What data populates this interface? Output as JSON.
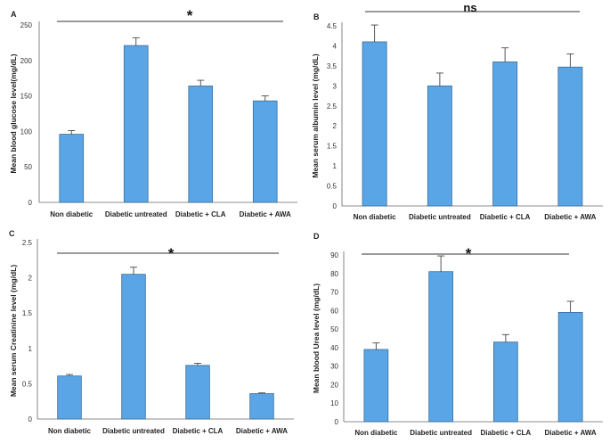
{
  "colors": {
    "bar_fill": "#5aa5e6",
    "bar_stroke": "#3c6e9c",
    "axis": "#666666",
    "error_bar": "#444444"
  },
  "chart_data": [
    {
      "panel": "A",
      "type": "bar",
      "title": "",
      "xlabel": "",
      "ylabel": "Mean blood glucose level(mg/dL)",
      "categories": [
        "Non diabetic",
        "Diabetic untreated",
        "Diabetic + CLA",
        "Diabetic + AWA"
      ],
      "values": [
        96,
        221,
        164,
        143
      ],
      "errors": [
        5,
        11,
        8,
        7
      ],
      "ylim": [
        0,
        250
      ],
      "yticks": [
        0,
        50,
        100,
        150,
        200,
        250
      ],
      "significance": "*",
      "grid": false
    },
    {
      "panel": "B",
      "type": "bar",
      "title": "",
      "xlabel": "",
      "ylabel": "Mean serum albumin level (mg/dL)",
      "categories": [
        "Non diabetic",
        "Diabetic untreated",
        "Diabetic + CLA",
        "Diabetic + AWA"
      ],
      "values": [
        4.1,
        3.0,
        3.6,
        3.47
      ],
      "errors": [
        0.42,
        0.32,
        0.35,
        0.33
      ],
      "ylim": [
        0,
        4.5
      ],
      "yticks": [
        0,
        0.5,
        1,
        1.5,
        2,
        2.5,
        3,
        3.5,
        4,
        4.5
      ],
      "significance": "ns",
      "grid": false
    },
    {
      "panel": "C",
      "type": "bar",
      "title": "",
      "xlabel": "",
      "ylabel": "Mean serum Creatinine level (mg/dL)",
      "categories": [
        "Non diabetic",
        "Diabetic untreated",
        "Diabetic + CLA",
        "Diabetic + AWA"
      ],
      "values": [
        0.61,
        2.05,
        0.76,
        0.36
      ],
      "errors": [
        0.02,
        0.1,
        0.03,
        0.01
      ],
      "ylim": [
        0,
        2.5
      ],
      "yticks": [
        0,
        0.5,
        1,
        1.5,
        2,
        2.5
      ],
      "significance": "*",
      "grid": false
    },
    {
      "panel": "D",
      "type": "bar",
      "title": "",
      "xlabel": "",
      "ylabel": "Mean blood Urea level (mg/dL)",
      "categories": [
        "Non diabetic",
        "Diabetic untreated",
        "Diabetic + CLA",
        "Diabetic + AWA"
      ],
      "values": [
        39,
        81,
        43,
        59
      ],
      "errors": [
        3.5,
        8.5,
        4,
        6
      ],
      "ylim": [
        0,
        90
      ],
      "yticks": [
        0,
        10,
        20,
        30,
        40,
        50,
        60,
        70,
        80,
        90
      ],
      "significance": "*",
      "grid": false
    }
  ]
}
